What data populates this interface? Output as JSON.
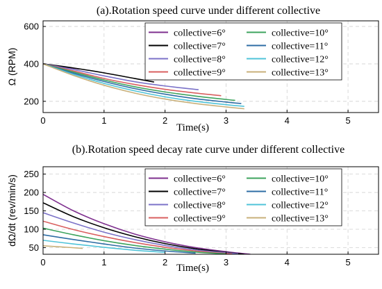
{
  "chart_data": [
    {
      "type": "line",
      "title": "(a).Rotation speed curve under different collective",
      "xlabel": "Time(s)",
      "ylabel": "Ω (RPM)",
      "xlim": [
        0,
        5.5
      ],
      "ylim": [
        140,
        630
      ],
      "xticks": [
        0,
        1,
        2,
        3,
        4,
        5
      ],
      "yticks": [
        200,
        400,
        600
      ],
      "grid": true,
      "legend_position": "top-right",
      "legend_columns": 2,
      "series": [
        {
          "name": "collective=6°",
          "color": "#7E2F8E",
          "x": [
            0,
            0.6
          ],
          "y": [
            400,
            372
          ]
        },
        {
          "name": "collective=7°",
          "color": "#000000",
          "x": [
            0,
            0.5,
            1.0,
            1.5,
            1.82
          ],
          "y": [
            400,
            378,
            352,
            322,
            303
          ]
        },
        {
          "name": "collective=8°",
          "color": "#7B72C8",
          "x": [
            0,
            0.5,
            1.0,
            1.5,
            2.0,
            2.55
          ],
          "y": [
            400,
            370,
            336,
            305,
            282,
            262
          ]
        },
        {
          "name": "collective=9°",
          "color": "#D95F5F",
          "x": [
            0,
            0.5,
            1.0,
            1.5,
            2.0,
            2.5,
            2.92
          ],
          "y": [
            400,
            362,
            322,
            290,
            264,
            244,
            230
          ]
        },
        {
          "name": "collective=10°",
          "color": "#3DA35D",
          "x": [
            0,
            0.5,
            1.0,
            1.5,
            2.0,
            2.5,
            3.0,
            3.15
          ],
          "y": [
            400,
            356,
            314,
            278,
            250,
            228,
            210,
            205
          ]
        },
        {
          "name": "collective=11°",
          "color": "#2E6DA4",
          "x": [
            0,
            0.5,
            1.0,
            1.5,
            2.0,
            2.5,
            3.0,
            3.25
          ],
          "y": [
            400,
            350,
            306,
            268,
            238,
            214,
            196,
            188
          ]
        },
        {
          "name": "collective=12°",
          "color": "#4FC3D8",
          "x": [
            0,
            0.5,
            1.0,
            1.5,
            2.0,
            2.5,
            3.0,
            3.3
          ],
          "y": [
            400,
            344,
            296,
            256,
            224,
            200,
            182,
            173
          ]
        },
        {
          "name": "collective=13°",
          "color": "#C8B07A",
          "x": [
            0,
            0.5,
            1.0,
            1.5,
            2.0,
            2.5,
            3.0,
            3.3
          ],
          "y": [
            400,
            338,
            286,
            244,
            212,
            188,
            170,
            160
          ]
        }
      ]
    },
    {
      "type": "line",
      "title": "(b).Rotation speed decay rate curve under different collective",
      "xlabel": "Time(s)",
      "ylabel": "dΩ/dt (rev/min/s)",
      "xlim": [
        0,
        5.5
      ],
      "ylim": [
        32,
        270
      ],
      "xticks": [
        0,
        1,
        2,
        3,
        4,
        5
      ],
      "yticks": [
        50,
        100,
        150,
        200,
        250
      ],
      "grid": true,
      "legend_position": "top-right",
      "legend_columns": 2,
      "series": [
        {
          "name": "collective=6°",
          "color": "#7E2F8E",
          "x": [
            0,
            0.5,
            1.0,
            1.5,
            2.0,
            2.5,
            3.0,
            3.4
          ],
          "y": [
            195,
            150,
            115,
            87,
            66,
            50,
            39,
            32
          ]
        },
        {
          "name": "collective=7°",
          "color": "#000000",
          "x": [
            0,
            0.5,
            1.0,
            1.5,
            2.0,
            2.5,
            3.0,
            3.3
          ],
          "y": [
            172,
            134,
            104,
            80,
            61,
            47,
            37,
            32
          ]
        },
        {
          "name": "collective=8°",
          "color": "#7B72C8",
          "x": [
            0,
            0.5,
            1.0,
            1.5,
            2.0,
            2.5,
            3.0,
            3.2
          ],
          "y": [
            145,
            117,
            92,
            72,
            56,
            44,
            36,
            33
          ]
        },
        {
          "name": "collective=9°",
          "color": "#D95F5F",
          "x": [
            0,
            0.5,
            1.0,
            1.5,
            2.0,
            2.5,
            3.0,
            3.1
          ],
          "y": [
            122,
            99,
            80,
            64,
            51,
            41,
            34,
            33
          ]
        },
        {
          "name": "collective=10°",
          "color": "#3DA35D",
          "x": [
            0,
            0.5,
            1.0,
            1.5,
            2.0,
            2.5,
            3.0
          ],
          "y": [
            103,
            85,
            69,
            56,
            46,
            38,
            33
          ]
        },
        {
          "name": "collective=11°",
          "color": "#2E6DA4",
          "x": [
            0,
            0.5,
            1.0,
            1.5,
            2.0,
            2.5
          ],
          "y": [
            85,
            72,
            60,
            49,
            41,
            35
          ]
        },
        {
          "name": "collective=12°",
          "color": "#4FC3D8",
          "x": [
            0,
            0.5,
            1.0,
            1.5,
            2.0
          ],
          "y": [
            70,
            60,
            51,
            43,
            37
          ]
        },
        {
          "name": "collective=13°",
          "color": "#C8B07A",
          "x": [
            0,
            0.3,
            0.65
          ],
          "y": [
            55,
            52,
            48
          ]
        }
      ]
    }
  ]
}
